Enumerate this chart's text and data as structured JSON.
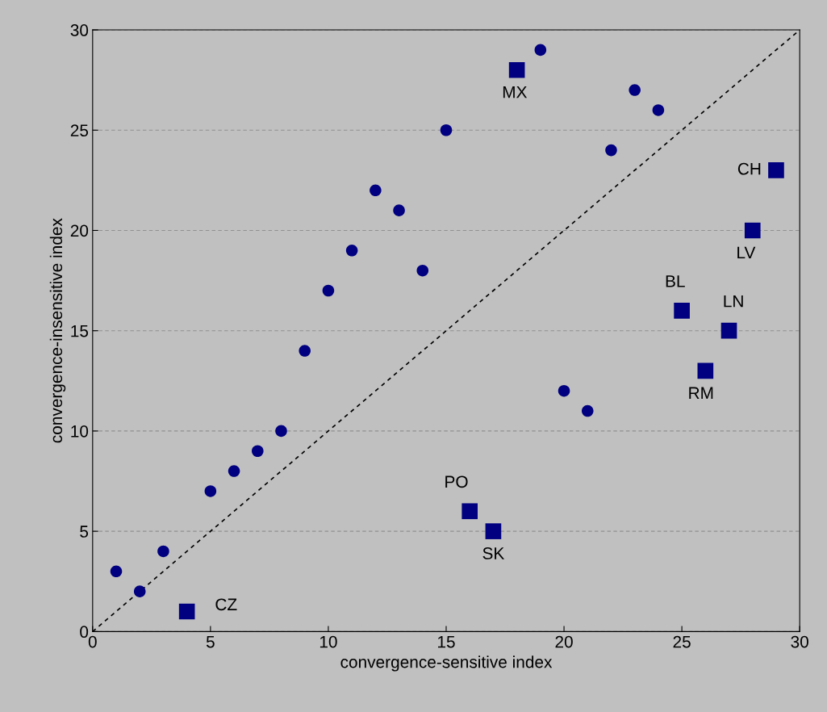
{
  "chart_data": {
    "type": "scatter",
    "xlabel": "convergence-sensitive index",
    "ylabel": "convergence-insensitive index",
    "xlim": [
      0,
      30
    ],
    "ylim": [
      0,
      30
    ],
    "xticks": [
      0,
      5,
      10,
      15,
      20,
      25,
      30
    ],
    "yticks": [
      0,
      5,
      10,
      15,
      20,
      25,
      30
    ],
    "grid": "y",
    "legend": false,
    "series": [
      {
        "type": "line",
        "color": "#000000",
        "line_style": "dashed",
        "marker": "none",
        "x": [
          0,
          30
        ],
        "values": [
          0,
          30
        ]
      },
      {
        "color": "#000080",
        "marker": "circle",
        "x": [
          1,
          2,
          3,
          5,
          6,
          7,
          8,
          9,
          10,
          11,
          12,
          13,
          14,
          15,
          19,
          20,
          21,
          22,
          23,
          24
        ],
        "values": [
          3,
          2,
          4,
          7,
          8,
          9,
          10,
          14,
          17,
          19,
          22,
          21,
          18,
          25,
          29,
          12,
          11,
          24,
          27,
          26
        ]
      },
      {
        "color": "#000080",
        "marker": "square",
        "x": [
          4,
          16,
          17,
          18,
          25,
          26,
          27,
          28,
          29
        ],
        "values": [
          1,
          6,
          5,
          28,
          16,
          13,
          15,
          20,
          23
        ]
      }
    ],
    "annotations": [
      {
        "text": "CZ",
        "x": 4,
        "y": 1
      },
      {
        "text": "PO",
        "x": 16,
        "y": 6
      },
      {
        "text": "SK",
        "x": 17,
        "y": 5
      },
      {
        "text": "MX",
        "x": 18,
        "y": 28
      },
      {
        "text": "BL",
        "x": 25,
        "y": 16
      },
      {
        "text": "RM",
        "x": 26,
        "y": 13
      },
      {
        "text": "LN",
        "x": 27,
        "y": 15
      },
      {
        "text": "LV",
        "x": 28,
        "y": 20
      },
      {
        "text": "CH",
        "x": 29,
        "y": 23
      }
    ]
  }
}
